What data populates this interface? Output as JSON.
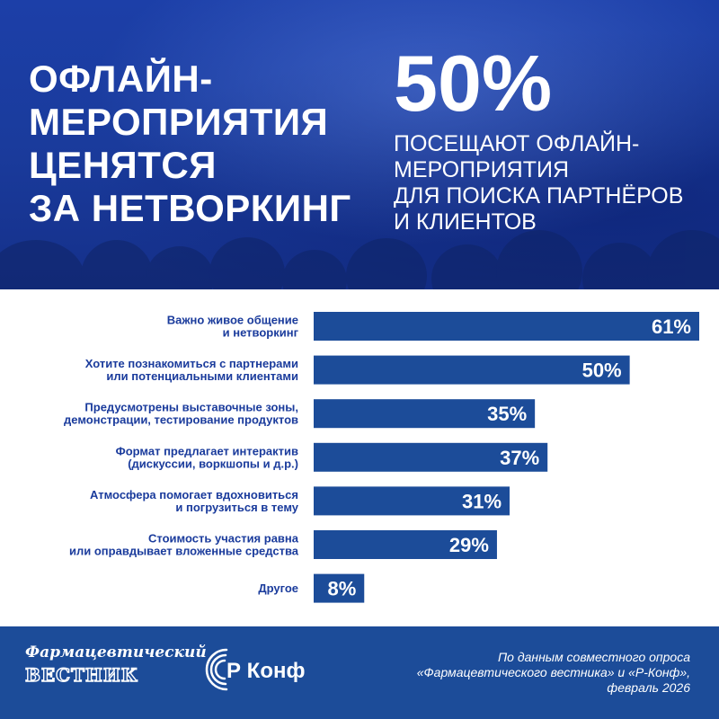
{
  "header": {
    "title_lines": [
      "ОФЛАЙН-",
      "МЕРОПРИЯТИЯ",
      "ЦЕНЯТСЯ",
      "ЗА НЕТВОРКИНГ"
    ],
    "big_percent": "50%",
    "stat_lines": [
      "ПОСЕЩАЮТ ОФЛАЙН-",
      "МЕРОПРИЯТИЯ",
      "ДЛЯ ПОИСКА ПАРТНЁРОВ",
      "И КЛИЕНТОВ"
    ]
  },
  "colors": {
    "header_bg": "#1a3b9c",
    "bar": "#1c4c99",
    "label_text": "#1a3b9c",
    "footer_bg": "#1c4c99",
    "white": "#ffffff"
  },
  "chart_data": {
    "type": "bar",
    "orientation": "horizontal",
    "categories": [
      [
        "Важно живое общение",
        "и нетворкинг"
      ],
      [
        "Хотите познакомиться с партнерами",
        "или потенциальными клиентами"
      ],
      [
        "Предусмотрены выставочные зоны,",
        "демонстрации, тестирование продуктов"
      ],
      [
        "Формат предлагает интерактив",
        "(дискуссии, воркшопы и д.р.)"
      ],
      [
        "Атмосфера помогает вдохновиться",
        "и погрузиться в тему"
      ],
      [
        "Стоимость участия равна",
        "или оправдывает вложенные средства"
      ],
      [
        "Другое"
      ]
    ],
    "values": [
      61,
      50,
      35,
      37,
      31,
      29,
      8
    ],
    "value_labels": [
      "61%",
      "50%",
      "35%",
      "37%",
      "31%",
      "29%",
      "8%"
    ],
    "unit": "%",
    "xlim": [
      0,
      61
    ],
    "grid": false,
    "legend": "none"
  },
  "footer": {
    "logo1_line1": "Фармацевтический",
    "logo1_line2": "ВЕСТНИК",
    "logo2_text": "Р Конф",
    "source_lines": [
      "По данным совместного опроса",
      "«Фармацевтического вестника» и «Р-Конф»,",
      "февраль 2026"
    ]
  }
}
